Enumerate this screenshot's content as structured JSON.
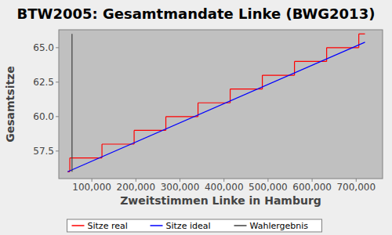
{
  "chart_data": {
    "type": "line",
    "title": "BTW2005: Gesamtmandate Linke (BWG2013)",
    "x_label": "Zweitstimmen Linke in Hamburg",
    "y_label": "Gesamtsitze",
    "xlim": [
      25000,
      760000
    ],
    "ylim": [
      55.5,
      66.3
    ],
    "xticks": [
      {
        "value": 100000,
        "label": "100,000"
      },
      {
        "value": 200000,
        "label": "200,000"
      },
      {
        "value": 300000,
        "label": "300,000"
      },
      {
        "value": 400000,
        "label": "400,000"
      },
      {
        "value": 500000,
        "label": "500,000"
      },
      {
        "value": 600000,
        "label": "600,000"
      },
      {
        "value": 700000,
        "label": "700,000"
      }
    ],
    "yticks": [
      {
        "value": 57.5,
        "label": "57.5"
      },
      {
        "value": 60,
        "label": "60.0"
      },
      {
        "value": 62.5,
        "label": "62.5"
      },
      {
        "value": 65,
        "label": "65.0"
      }
    ],
    "grid": false,
    "legend": "bottom",
    "series": [
      {
        "name": "Sitze real",
        "color": "#ff0000",
        "line_style": "steps",
        "x": [
          45000,
          50000,
          123000,
          196000,
          268000,
          341000,
          414000,
          487000,
          560000,
          633000,
          706000,
          720000
        ],
        "values": [
          56,
          57,
          58,
          59,
          60,
          61,
          62,
          63,
          64,
          65,
          66,
          66
        ]
      },
      {
        "name": "Sitze ideal",
        "color": "#0000ff",
        "line_style": "solid",
        "x": [
          45000,
          720000
        ],
        "values": [
          56,
          65.4
        ]
      },
      {
        "name": "Wahlergebnis",
        "color": "#404040",
        "line_style": "solid",
        "x": [
          55000,
          55000
        ],
        "values": [
          56,
          66
        ]
      }
    ]
  }
}
